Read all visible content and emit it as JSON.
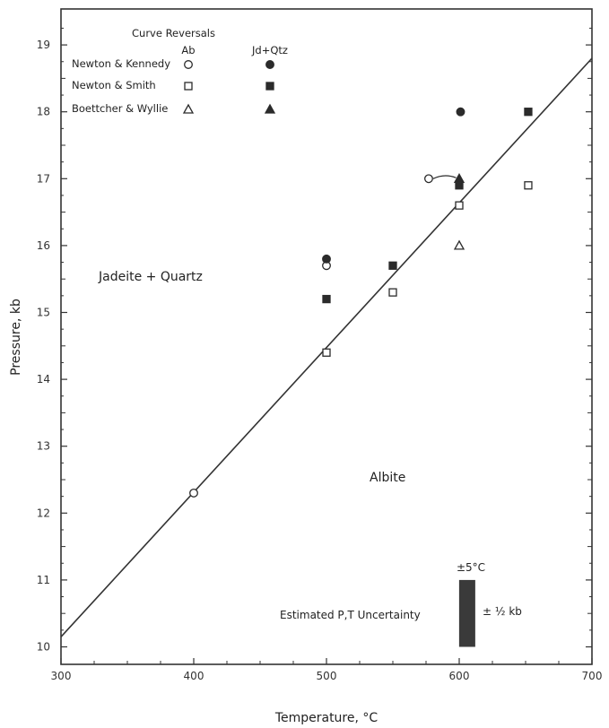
{
  "chart_data": {
    "type": "scatter",
    "xlabel": "Temperature, °C",
    "ylabel": "Pressure, kb",
    "xlim": [
      300,
      700
    ],
    "ylim": [
      9.7,
      19.5
    ],
    "x_ticks": [
      "300",
      "400",
      "500",
      "600",
      "700"
    ],
    "y_ticks": [
      "10",
      "11",
      "12",
      "13",
      "14",
      "15",
      "16",
      "17",
      "18",
      "19"
    ],
    "grid": false,
    "legend": {
      "title": "Curve  Reversals",
      "col_ab": "Ab",
      "col_jd": "Jd+Qtz",
      "entries": [
        "Newton & Kennedy",
        "Newton & Smith",
        "Boettcher & Wyllie"
      ]
    },
    "equilibrium_line": {
      "x": [
        300,
        700
      ],
      "y": [
        10.15,
        18.8
      ]
    },
    "series": [
      {
        "name": "Newton & Kennedy",
        "phase": "Ab",
        "marker": "circle-open",
        "x": [
          400,
          500,
          577
        ],
        "y": [
          12.3,
          15.7,
          17.0
        ]
      },
      {
        "name": "Newton & Kennedy",
        "phase": "Jd+Qtz",
        "marker": "circle-filled",
        "x": [
          500,
          601
        ],
        "y": [
          15.8,
          18.0
        ]
      },
      {
        "name": "Newton & Smith",
        "phase": "Ab",
        "marker": "square-open",
        "x": [
          500,
          550,
          600,
          652
        ],
        "y": [
          14.4,
          15.3,
          16.6,
          16.9
        ]
      },
      {
        "name": "Newton & Smith",
        "phase": "Jd+Qtz",
        "marker": "square-filled",
        "x": [
          500,
          550,
          600,
          652
        ],
        "y": [
          15.2,
          15.7,
          16.9,
          18.0
        ]
      },
      {
        "name": "Boettcher & Wyllie",
        "phase": "Ab",
        "marker": "triangle-open",
        "x": [
          600
        ],
        "y": [
          16.0
        ]
      },
      {
        "name": "Boettcher & Wyllie",
        "phase": "Jd+Qtz",
        "marker": "triangle-filled",
        "x": [
          600
        ],
        "y": [
          17.0
        ]
      }
    ],
    "annotations": {
      "region_upper": "Jadeite + Quartz",
      "region_lower": "Albite",
      "uncertainty_label": "Estimated P,T Uncertainty",
      "uncertainty_temp": "±5°C",
      "uncertainty_pressure": "± ½ kb",
      "uncertainty_bar": {
        "x": 606,
        "y_low": 10.0,
        "y_high": 11.0
      }
    }
  }
}
